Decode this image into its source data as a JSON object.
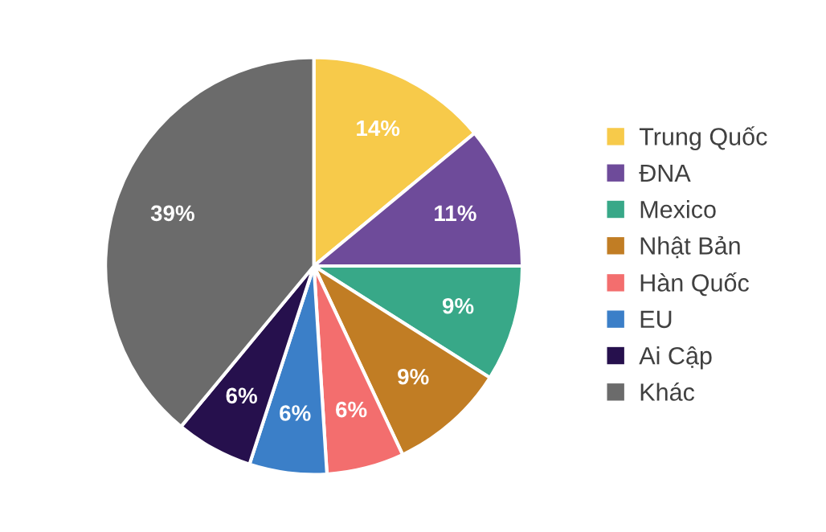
{
  "chart_data": {
    "type": "pie",
    "categories": [
      "Trung Quốc",
      "ĐNA",
      "Mexico",
      "Nhật Bản",
      "Hàn Quốc",
      "EU",
      "Ai Cập",
      "Khác"
    ],
    "values": [
      14,
      11,
      9,
      9,
      6,
      6,
      6,
      39
    ],
    "colors": [
      "#f7ca4a",
      "#6e4b9a",
      "#38a888",
      "#c17d24",
      "#f36e6e",
      "#3b7fc8",
      "#26104d",
      "#6b6b6b"
    ],
    "value_labels": [
      "14%",
      "11%",
      "9%",
      "9%",
      "6%",
      "6%",
      "6%",
      "39%"
    ],
    "legend": "right"
  }
}
